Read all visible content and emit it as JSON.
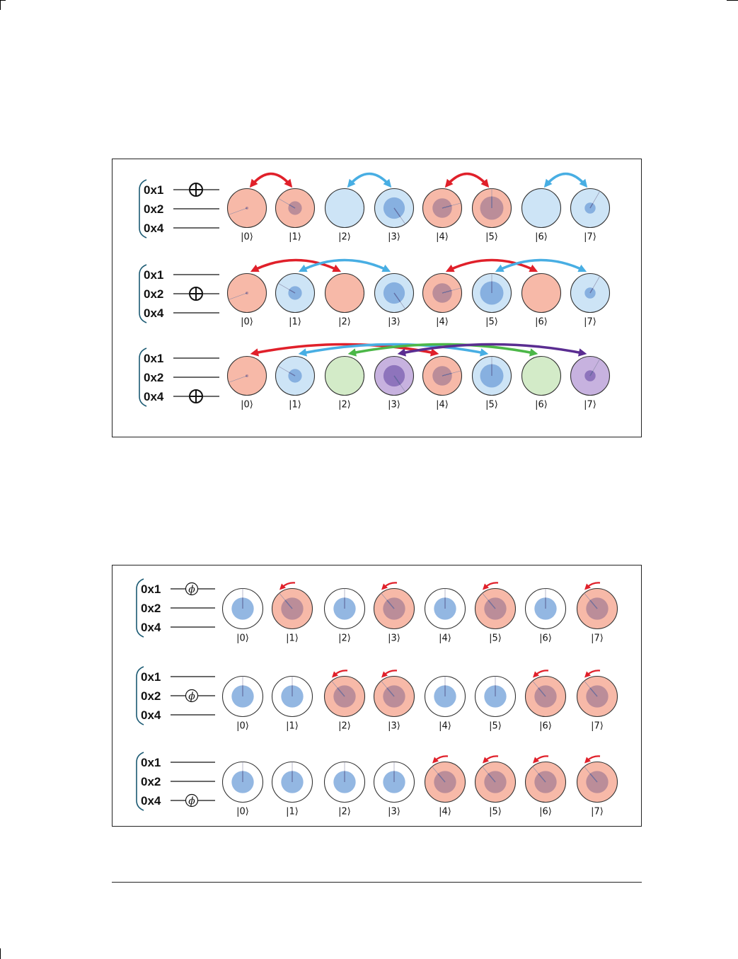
{
  "qubits": [
    "0x1",
    "0x2",
    "0x4"
  ],
  "kets": [
    "|0⟩",
    "|1⟩",
    "|2⟩",
    "|3⟩",
    "|4⟩",
    "|5⟩",
    "|6⟩",
    "|7⟩"
  ],
  "colors": {
    "pink_fill": "#f7b9a8",
    "blue_fill": "#cde4f6",
    "green_fill": "#d3ebc8",
    "purple_fill": "#c7b2df",
    "white_fill": "#ffffff",
    "amp_blue": "#6f9fd8",
    "amp_dark": "#8a6a8c",
    "red_arrow": "#e0202a",
    "blue_arrow": "#48aee3",
    "green_arrow": "#4cb748",
    "purple_arrow": "#5a2d91"
  },
  "not_diagram": {
    "gate_symbol": "circled-plus",
    "rows": [
      {
        "target_qubit": "0x1",
        "circle_colors": [
          "pink",
          "pink",
          "blue",
          "blue",
          "pink",
          "pink",
          "blue",
          "blue"
        ],
        "swaps": [
          {
            "from": 0,
            "to": 1,
            "color": "red"
          },
          {
            "from": 2,
            "to": 3,
            "color": "blue"
          },
          {
            "from": 4,
            "to": 5,
            "color": "red"
          },
          {
            "from": 6,
            "to": 7,
            "color": "blue"
          }
        ]
      },
      {
        "target_qubit": "0x2",
        "circle_colors": [
          "pink",
          "blue",
          "pink",
          "blue",
          "pink",
          "blue",
          "pink",
          "blue"
        ],
        "swaps": [
          {
            "from": 0,
            "to": 2,
            "color": "red"
          },
          {
            "from": 1,
            "to": 3,
            "color": "blue"
          },
          {
            "from": 4,
            "to": 6,
            "color": "red"
          },
          {
            "from": 5,
            "to": 7,
            "color": "blue"
          }
        ]
      },
      {
        "target_qubit": "0x4",
        "circle_colors": [
          "pink",
          "blue",
          "green",
          "purple",
          "pink",
          "blue",
          "green",
          "purple"
        ],
        "swaps": [
          {
            "from": 0,
            "to": 4,
            "color": "red"
          },
          {
            "from": 1,
            "to": 5,
            "color": "blue"
          },
          {
            "from": 2,
            "to": 6,
            "color": "green"
          },
          {
            "from": 3,
            "to": 7,
            "color": "purple"
          }
        ]
      }
    ],
    "amplitudes": [
      {
        "magnitude": 0.04,
        "phase_deg": 250
      },
      {
        "magnitude": 0.35,
        "phase_deg": 300
      },
      {
        "magnitude": 0,
        "phase_deg": 0
      },
      {
        "magnitude": 0.55,
        "phase_deg": 145
      },
      {
        "magnitude": 0.5,
        "phase_deg": 75
      },
      {
        "magnitude": 0.6,
        "phase_deg": 0
      },
      {
        "magnitude": 0,
        "phase_deg": 0
      },
      {
        "magnitude": 0.28,
        "phase_deg": 30
      }
    ]
  },
  "phase_diagram": {
    "gate_symbol": "ϕ",
    "rows": [
      {
        "target_qubit": "0x1",
        "rotated_states": [
          1,
          3,
          5,
          7
        ]
      },
      {
        "target_qubit": "0x2",
        "rotated_states": [
          2,
          3,
          6,
          7
        ]
      },
      {
        "target_qubit": "0x4",
        "rotated_states": [
          4,
          5,
          6,
          7
        ]
      }
    ],
    "amplitude_magnitude": 0.55,
    "rotated_phase_deg": -40
  }
}
